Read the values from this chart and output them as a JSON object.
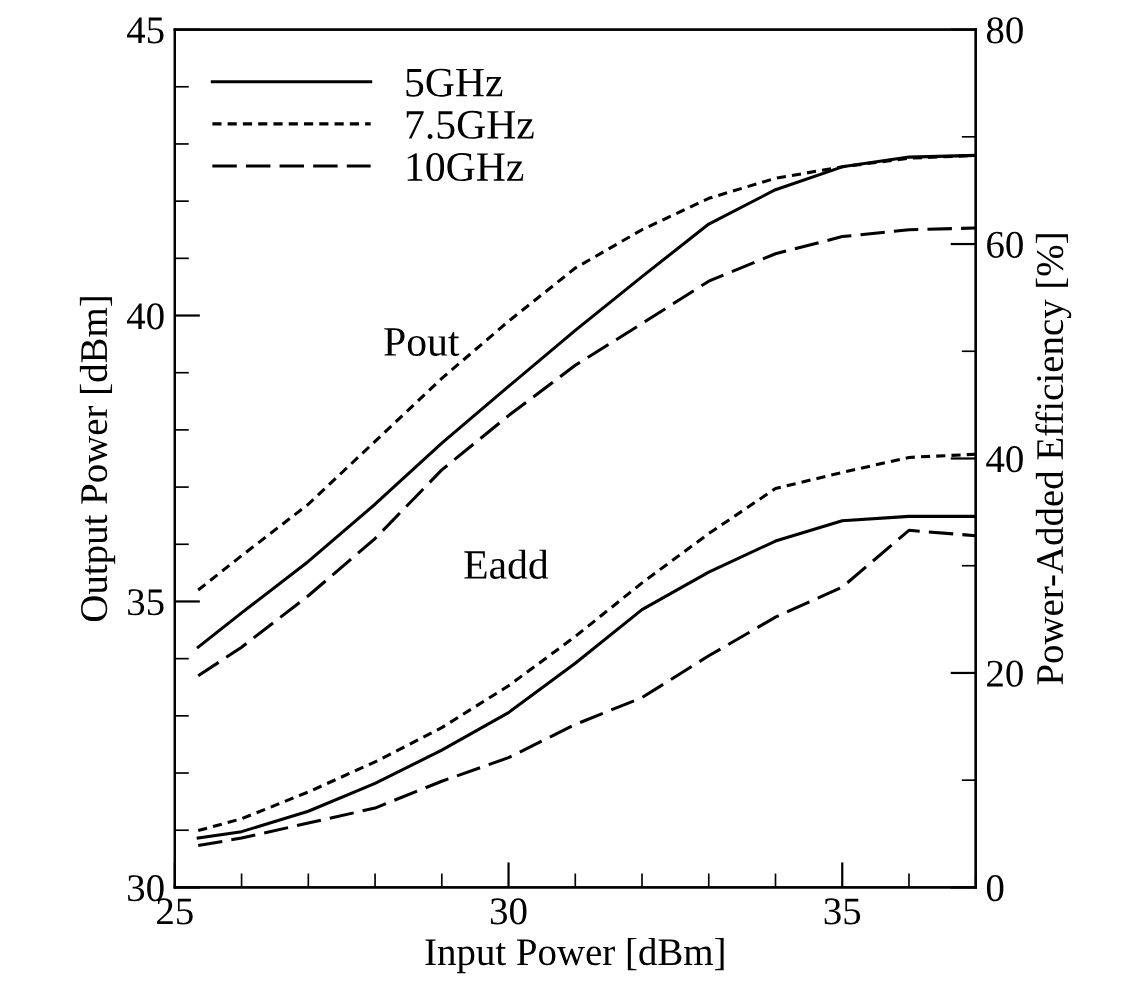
{
  "chart_data": {
    "type": "line",
    "xlabel": "Input Power [dBm]",
    "ylabel": "Output Power [dBm]",
    "y2label": "Power-Added Efficiency [%]",
    "xlim": [
      25,
      37
    ],
    "xticks": [
      25,
      30,
      35
    ],
    "ylim": [
      30,
      45
    ],
    "yticks": [
      30,
      35,
      40,
      45
    ],
    "y2lim": [
      0,
      80
    ],
    "y2ticks": [
      0,
      20,
      40,
      60,
      80
    ],
    "x": [
      25.35,
      26,
      27,
      28,
      29,
      30,
      31,
      32,
      33,
      34,
      35,
      36,
      37
    ],
    "legend": "top left",
    "grid": false,
    "marker": "none",
    "annotations": [
      "Pout",
      "Eadd"
    ],
    "series": [
      {
        "name": "5GHz",
        "color": "#000000",
        "line_style": "solid",
        "values": [
          34.2,
          34.8,
          35.7,
          36.7,
          37.77,
          38.76,
          39.74,
          40.68,
          41.6,
          42.2,
          42.6,
          42.77,
          42.8
        ]
      },
      {
        "name": "7.5GHz",
        "color": "#000000",
        "line_style": "dotted",
        "values": [
          35.2,
          35.8,
          36.7,
          37.8,
          38.9,
          39.9,
          40.83,
          41.5,
          42.05,
          42.4,
          42.6,
          42.75,
          42.8
        ]
      },
      {
        "name": "10GHz",
        "color": "#000000",
        "line_style": "dashed",
        "values": [
          33.7,
          34.2,
          35.1,
          36.1,
          37.3,
          38.25,
          39.13,
          39.86,
          40.6,
          41.08,
          41.38,
          41.5,
          41.53
        ]
      },
      {
        "color": "#000000",
        "line_style": "solid",
        "axis": "y2",
        "values": [
          4.6,
          5.2,
          7.1,
          9.7,
          12.8,
          16.3,
          20.9,
          25.9,
          29.4,
          32.3,
          34.2,
          34.6,
          34.6
        ]
      },
      {
        "color": "#000000",
        "line_style": "dotted",
        "axis": "y2",
        "values": [
          5.3,
          6.4,
          8.9,
          11.7,
          14.9,
          18.8,
          23.4,
          28.4,
          33.0,
          37.2,
          38.7,
          40.1,
          40.4
        ]
      },
      {
        "color": "#000000",
        "line_style": "dashed",
        "axis": "y2",
        "values": [
          3.9,
          4.6,
          6.0,
          7.4,
          9.9,
          12.1,
          15.2,
          17.7,
          21.6,
          25.2,
          28.0,
          33.3,
          32.8
        ]
      }
    ]
  }
}
